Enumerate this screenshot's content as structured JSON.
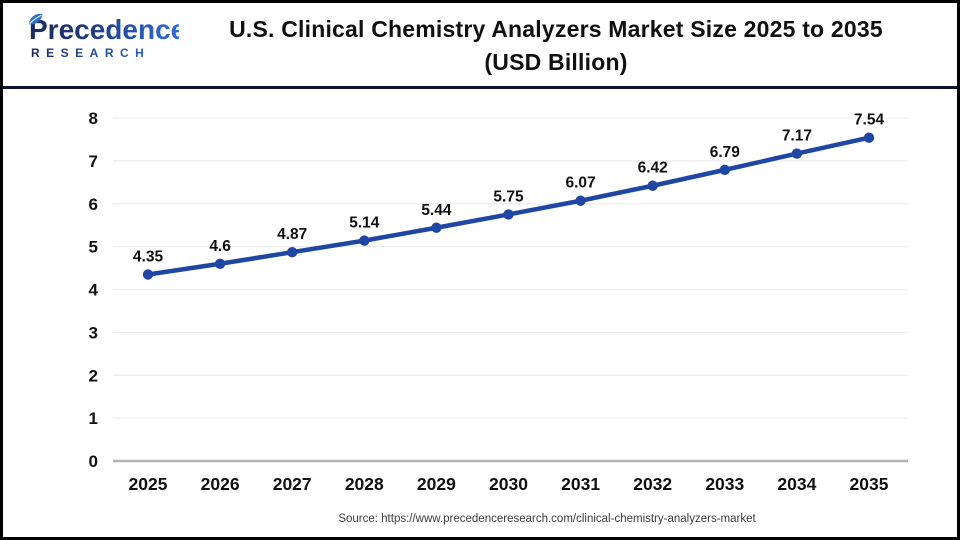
{
  "logo": {
    "brand": "Precedence",
    "brand_sub": "RESEARCH",
    "leaf_color": "#2e6fd2"
  },
  "header": {
    "title_line1": "U.S. Clinical Chemistry Analyzers Market Size 2025 to 2035",
    "title_line2": "(USD Billion)"
  },
  "chart_data": {
    "type": "line",
    "title": "U.S. Clinical Chemistry Analyzers Market Size 2025 to 2035 (USD Billion)",
    "categories": [
      "2025",
      "2026",
      "2027",
      "2028",
      "2029",
      "2030",
      "2031",
      "2032",
      "2033",
      "2034",
      "2035"
    ],
    "values": [
      4.35,
      4.6,
      4.87,
      5.14,
      5.44,
      5.75,
      6.07,
      6.42,
      6.79,
      7.17,
      7.54
    ],
    "data_labels": [
      "4.35",
      "4.6",
      "4.87",
      "5.14",
      "5.44",
      "5.75",
      "6.07",
      "6.42",
      "6.79",
      "7.17",
      "7.54"
    ],
    "xlabel": "",
    "ylabel": "",
    "ylim": [
      0,
      8
    ],
    "yticks": [
      0,
      1,
      2,
      3,
      4,
      5,
      6,
      7,
      8
    ],
    "grid": true,
    "legend": "none",
    "line_color": "#1f46a3",
    "marker_color": "#1f46a3",
    "gridline_color": "#ededed",
    "axis_line_color": "#b3b3b3",
    "tick_label_color": "#111111",
    "data_label_color": "#111111"
  },
  "footer": {
    "source": "Source: https://www.precedenceresearch.com/clinical-chemistry-analyzers-market"
  }
}
